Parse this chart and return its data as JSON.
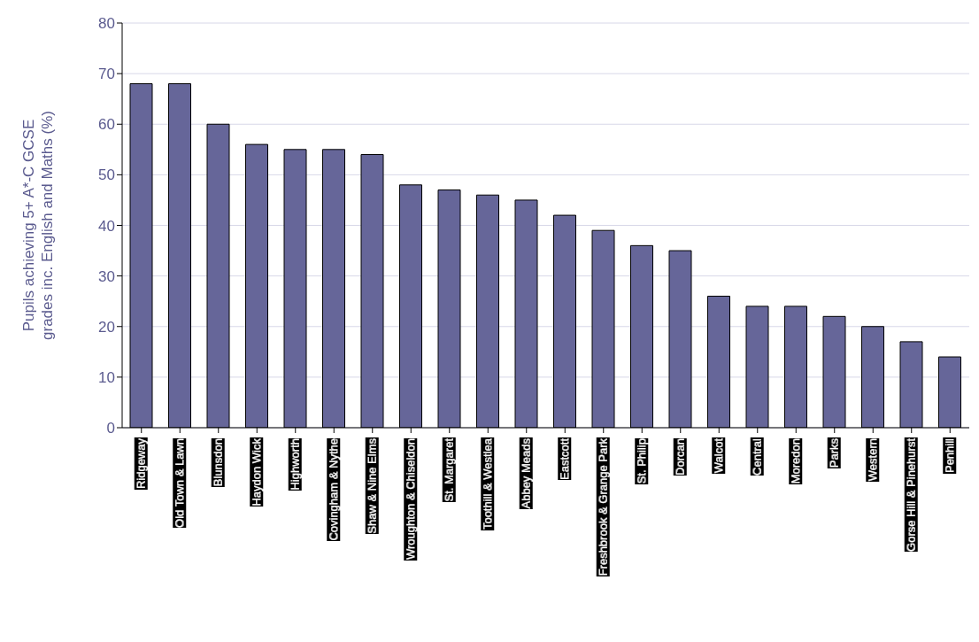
{
  "chart_data": {
    "type": "bar",
    "ylabel": "Pupils achieving 5+ A*-C GCSE grades inc. English and Maths (%)",
    "categories": [
      "Ridgeway",
      "Old Town & Lawn",
      "Blunsdon",
      "Haydon Wick",
      "Highworth",
      "Covingham & Nythe",
      "Shaw & Nine Elms",
      "Wroughton & Chiseldon",
      "St. Margaret",
      "Toothill & Westlea",
      "Abbey Meads",
      "Eastcott",
      "Freshbrook & Grange Park",
      "St. Philip",
      "Dorcan",
      "Walcot",
      "Central",
      "Moredon",
      "Parks",
      "Western",
      "Gorse Hill & Pinehurst",
      "Penhill"
    ],
    "values": [
      68,
      68,
      60,
      56,
      55,
      55,
      54,
      48,
      47,
      46,
      45,
      42,
      39,
      36,
      35,
      26,
      24,
      24,
      22,
      20,
      17,
      14
    ],
    "color": "#666699",
    "ylim": [
      0,
      80
    ],
    "yticks": [
      0,
      10,
      20,
      30,
      40,
      50,
      60,
      70,
      80
    ],
    "grid": "y"
  }
}
